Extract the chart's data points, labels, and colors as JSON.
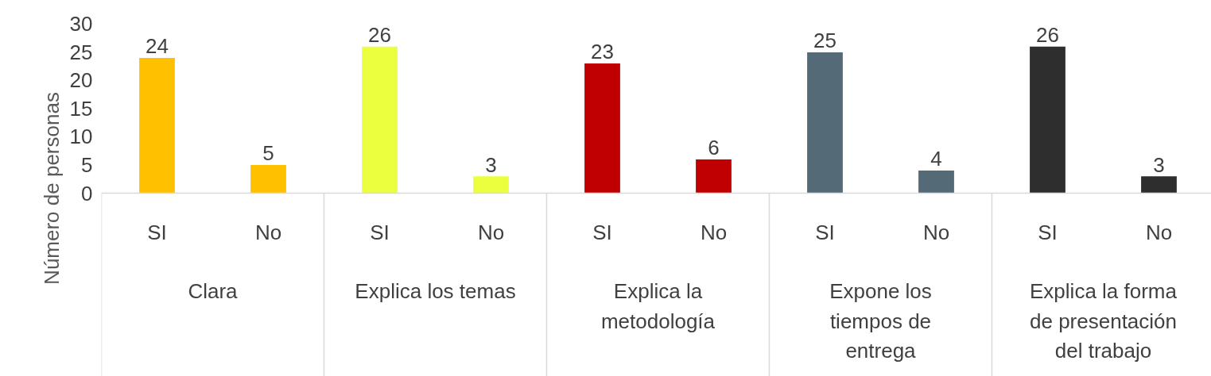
{
  "chart_data": {
    "type": "bar",
    "ylabel": "Número de personas",
    "categories": [
      "SI",
      "No",
      "SI",
      "No",
      "SI",
      "No",
      "SI",
      "No",
      "SI",
      "No"
    ],
    "values": [
      24,
      5,
      26,
      3,
      23,
      6,
      25,
      4,
      26,
      3
    ],
    "colors": [
      "#ffc000",
      "#ffc000",
      "#ebff3f",
      "#ebff3f",
      "#c00000",
      "#c00000",
      "#546a77",
      "#546a77",
      "#2e2e2e",
      "#2e2e2e"
    ],
    "ylim": [
      0,
      30
    ],
    "yticks": [
      0,
      5,
      10,
      15,
      20,
      25,
      30
    ],
    "grid": false,
    "data_labels": true,
    "annotations": [
      "Clara",
      "Explica los temas",
      "Explica la metodología",
      "Expone los tiempos de entrega",
      "Explica la forma de presentación del trabajo"
    ]
  }
}
